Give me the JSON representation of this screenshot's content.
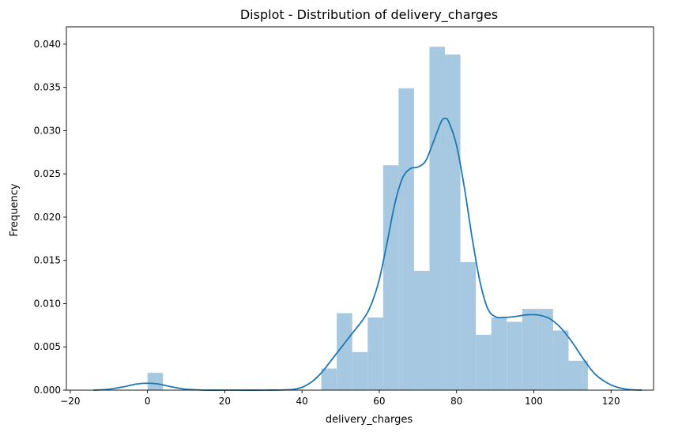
{
  "chart_data": {
    "type": "bar",
    "title": "Displot - Distribution of delivery_charges",
    "xlabel": "delivery_charges",
    "ylabel": "Frequency",
    "xlim": [
      -21,
      131
    ],
    "ylim": [
      0,
      0.042
    ],
    "xticks": [
      -20,
      0,
      20,
      40,
      60,
      80,
      100,
      120
    ],
    "yticks": [
      0.0,
      0.005,
      0.01,
      0.015,
      0.02,
      0.025,
      0.03,
      0.035,
      0.04
    ],
    "xtick_labels": [
      "−20",
      "0",
      "20",
      "40",
      "60",
      "80",
      "100",
      "120"
    ],
    "ytick_labels": [
      "0.000",
      "0.005",
      "0.010",
      "0.015",
      "0.020",
      "0.025",
      "0.030",
      "0.035",
      "0.040"
    ],
    "grid": false,
    "histogram": {
      "color": "#a6c8e0",
      "bins": [
        {
          "x0": 0,
          "x1": 4,
          "value": 0.002
        },
        {
          "x0": 45,
          "x1": 49,
          "value": 0.0025
        },
        {
          "x0": 49,
          "x1": 53,
          "value": 0.0089
        },
        {
          "x0": 53,
          "x1": 57,
          "value": 0.0044
        },
        {
          "x0": 57,
          "x1": 61,
          "value": 0.0084
        },
        {
          "x0": 61,
          "x1": 65,
          "value": 0.026
        },
        {
          "x0": 65,
          "x1": 69,
          "value": 0.0349
        },
        {
          "x0": 69,
          "x1": 73,
          "value": 0.0138
        },
        {
          "x0": 73,
          "x1": 77,
          "value": 0.0397
        },
        {
          "x0": 77,
          "x1": 81,
          "value": 0.0388
        },
        {
          "x0": 81,
          "x1": 85,
          "value": 0.0148
        },
        {
          "x0": 85,
          "x1": 89,
          "value": 0.0064
        },
        {
          "x0": 89,
          "x1": 93,
          "value": 0.0084
        },
        {
          "x0": 93,
          "x1": 97,
          "value": 0.0079
        },
        {
          "x0": 97,
          "x1": 101,
          "value": 0.0094
        },
        {
          "x0": 101,
          "x1": 105,
          "value": 0.0094
        },
        {
          "x0": 105,
          "x1": 109,
          "value": 0.0069
        },
        {
          "x0": 109,
          "x1": 114,
          "value": 0.0034
        }
      ]
    },
    "kde": {
      "color": "#1f77b4",
      "x": [
        -14,
        -10,
        -6,
        -3,
        0,
        3,
        6,
        10,
        15,
        20,
        30,
        38,
        42,
        45,
        48,
        52,
        56,
        58,
        60,
        62,
        64,
        66,
        68,
        70,
        72,
        74,
        76,
        77,
        78,
        80,
        82,
        84,
        86,
        88,
        90,
        92,
        95,
        98,
        101,
        104,
        107,
        110,
        113,
        116,
        120,
        124,
        128
      ],
      "y": [
        0.0,
        0.0001,
        0.0004,
        0.0007,
        0.0008,
        0.0007,
        0.0004,
        0.0001,
        0.0,
        0.0,
        0.0,
        0.0001,
        0.0008,
        0.002,
        0.0037,
        0.006,
        0.0083,
        0.01,
        0.0128,
        0.017,
        0.0215,
        0.0245,
        0.0256,
        0.0258,
        0.0265,
        0.0287,
        0.031,
        0.0314,
        0.031,
        0.0283,
        0.0235,
        0.0177,
        0.0127,
        0.0095,
        0.0085,
        0.0084,
        0.0085,
        0.0087,
        0.0087,
        0.0083,
        0.0072,
        0.0055,
        0.0035,
        0.0018,
        0.0006,
        0.0001,
        0.0
      ]
    }
  }
}
